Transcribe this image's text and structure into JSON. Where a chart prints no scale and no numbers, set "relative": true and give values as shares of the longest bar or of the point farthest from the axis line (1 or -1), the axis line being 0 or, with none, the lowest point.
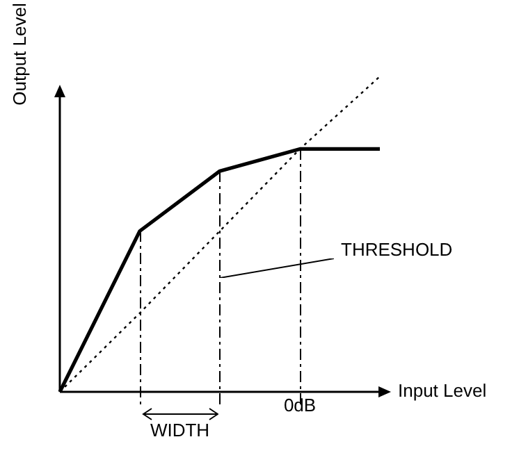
{
  "chart_data": {
    "type": "line",
    "relative": true,
    "xlabel": "Input Level",
    "ylabel": "Output Level",
    "categories": [
      null,
      null,
      null,
      null,
      null
    ],
    "series": [
      {
        "values": [
          0,
          0.51,
          0.7,
          0.77,
          0.77
        ],
        "color": "#000000",
        "line_style": "solid"
      },
      {
        "values": [
          0,
          0.25,
          0.51,
          0.77,
          1
        ],
        "color": "#000000",
        "line_style": "dotted"
      }
    ],
    "annotations": [
      "THRESHOLD",
      "0dB",
      "WIDTH"
    ],
    "legend": false,
    "marker": "none"
  }
}
